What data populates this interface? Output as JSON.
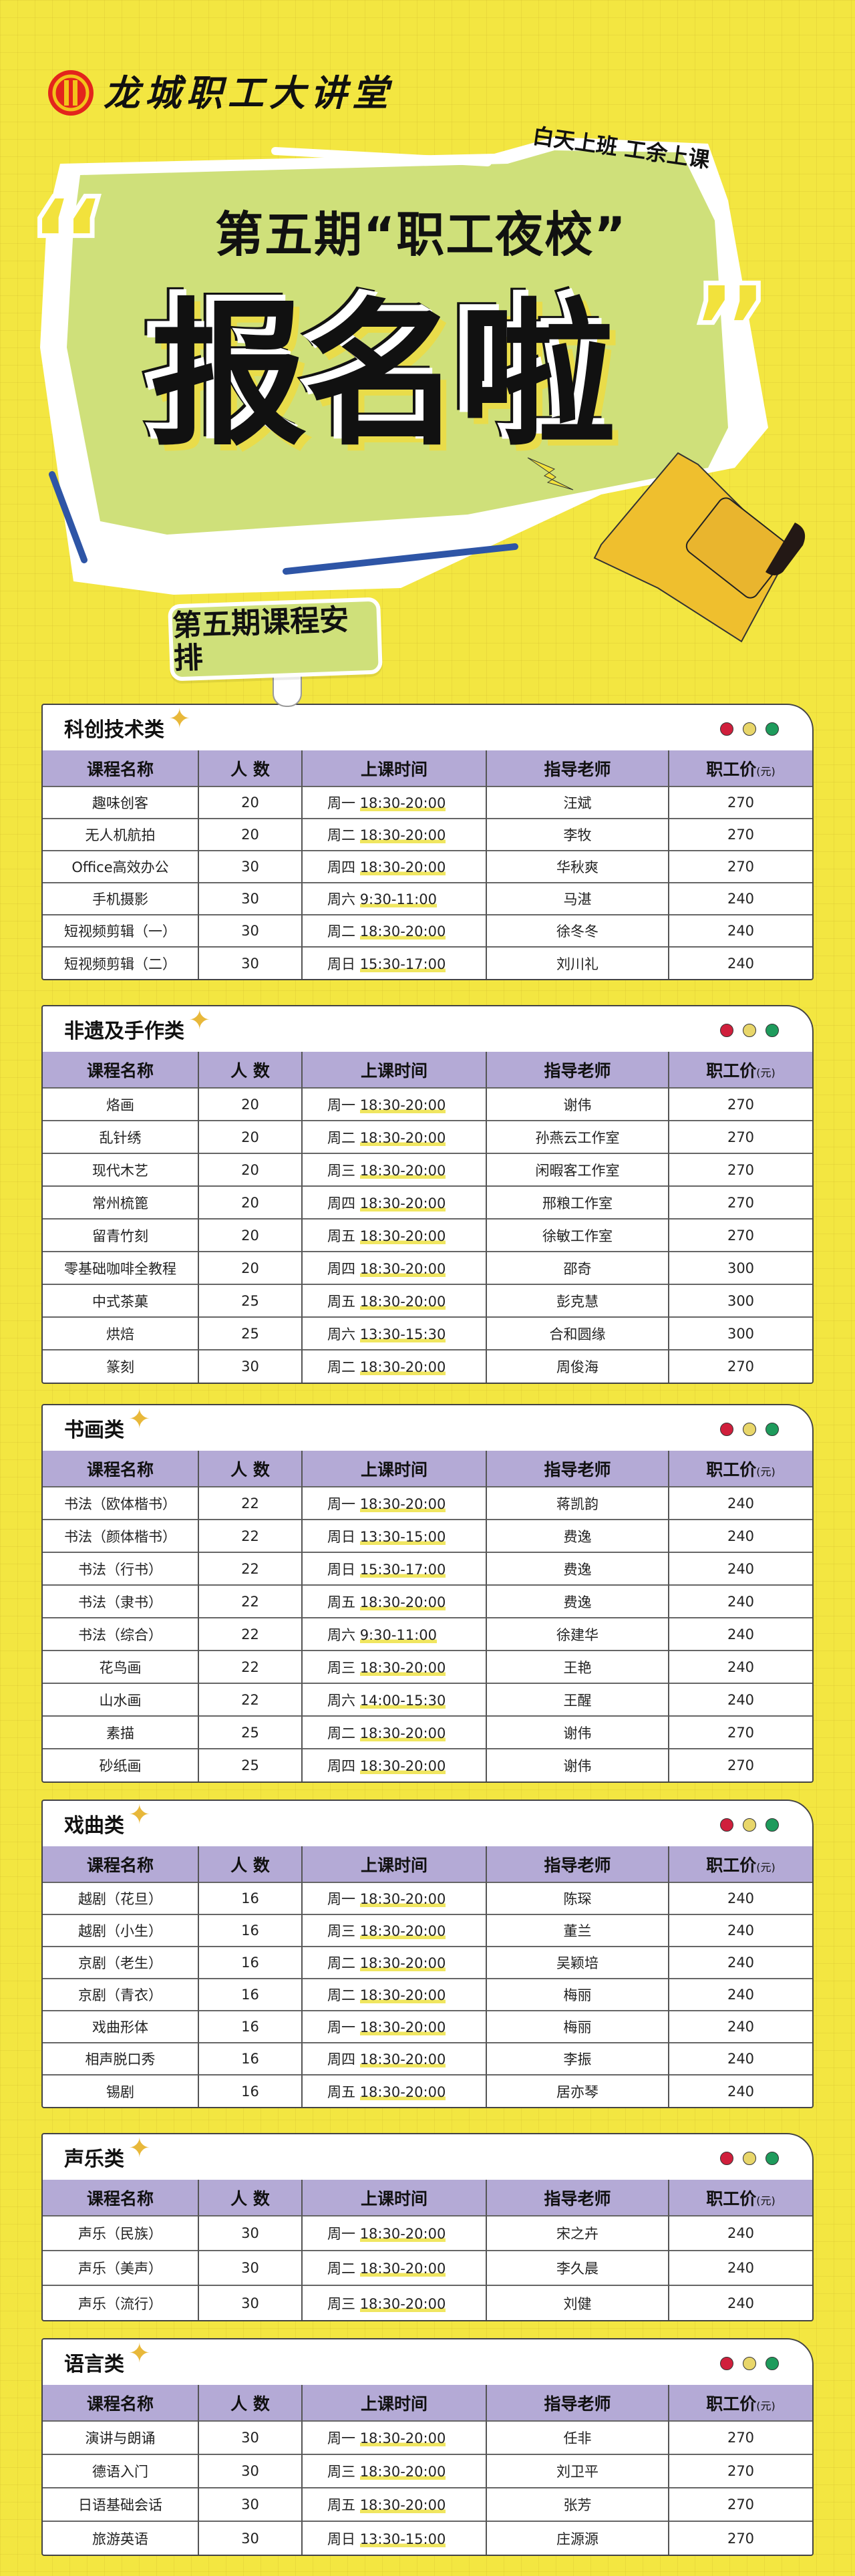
{
  "header": {
    "logo_text": "龙城职工大讲堂",
    "slogan": "白天上班  工余上课",
    "subtitle": "第五期“职工夜校”",
    "headline": "报名啦",
    "quote_open": "“",
    "quote_close": "”",
    "sign_label": "第五期课程安排"
  },
  "colors": {
    "background": "#f3e641",
    "accent_green": "#cfe07a",
    "table_header": "#b4aad6",
    "dot_red": "#d01f3c",
    "dot_yellow": "#e8d66a",
    "dot_green": "#1e9b5c"
  },
  "table_headers": {
    "name": "课程名称",
    "count": "人  数",
    "time": "上课时间",
    "teacher": "指导老师",
    "price": "职工价",
    "price_unit": "(元)"
  },
  "categories": [
    {
      "title": "科创技术类",
      "rows": [
        [
          "趣味创客",
          "20",
          "周一",
          "18:30-20:00",
          "汪斌",
          "270"
        ],
        [
          "无人机航拍",
          "20",
          "周二",
          "18:30-20:00",
          "李牧",
          "270"
        ],
        [
          "Office高效办公",
          "30",
          "周四",
          "18:30-20:00",
          "华秋爽",
          "270"
        ],
        [
          "手机摄影",
          "30",
          "周六",
          "9:30-11:00",
          "马湛",
          "240"
        ],
        [
          "短视频剪辑（一）",
          "30",
          "周二",
          "18:30-20:00",
          "徐冬冬",
          "240"
        ],
        [
          "短视频剪辑（二）",
          "30",
          "周日",
          "15:30-17:00",
          "刘川礼",
          "240"
        ]
      ]
    },
    {
      "title": "非遗及手作类",
      "rows": [
        [
          "烙画",
          "20",
          "周一",
          "18:30-20:00",
          "谢伟",
          "270"
        ],
        [
          "乱针绣",
          "20",
          "周二",
          "18:30-20:00",
          "孙燕云工作室",
          "270"
        ],
        [
          "现代木艺",
          "20",
          "周三",
          "18:30-20:00",
          "闲暇客工作室",
          "270"
        ],
        [
          "常州梳篦",
          "20",
          "周四",
          "18:30-20:00",
          "邢粮工作室",
          "270"
        ],
        [
          "留青竹刻",
          "20",
          "周五",
          "18:30-20:00",
          "徐敏工作室",
          "270"
        ],
        [
          "零基础咖啡全教程",
          "20",
          "周四",
          "18:30-20:00",
          "邵奇",
          "300"
        ],
        [
          "中式茶菓",
          "25",
          "周五",
          "18:30-20:00",
          "彭克慧",
          "300"
        ],
        [
          "烘焙",
          "25",
          "周六",
          "13:30-15:30",
          "合和圆缘",
          "300"
        ],
        [
          "篆刻",
          "30",
          "周二",
          "18:30-20:00",
          "周俊海",
          "270"
        ]
      ]
    },
    {
      "title": "书画类",
      "rows": [
        [
          "书法（欧体楷书）",
          "22",
          "周一",
          "18:30-20:00",
          "蒋凯韵",
          "240"
        ],
        [
          "书法（颜体楷书）",
          "22",
          "周日",
          "13:30-15:00",
          "费逸",
          "240"
        ],
        [
          "书法（行书）",
          "22",
          "周日",
          "15:30-17:00",
          "费逸",
          "240"
        ],
        [
          "书法（隶书）",
          "22",
          "周五",
          "18:30-20:00",
          "费逸",
          "240"
        ],
        [
          "书法（综合）",
          "22",
          "周六",
          "9:30-11:00",
          "徐建华",
          "240"
        ],
        [
          "花鸟画",
          "22",
          "周三",
          "18:30-20:00",
          "王艳",
          "240"
        ],
        [
          "山水画",
          "22",
          "周六",
          "14:00-15:30",
          "王醒",
          "240"
        ],
        [
          "素描",
          "25",
          "周二",
          "18:30-20:00",
          "谢伟",
          "270"
        ],
        [
          "砂纸画",
          "25",
          "周四",
          "18:30-20:00",
          "谢伟",
          "270"
        ]
      ]
    },
    {
      "title": "戏曲类",
      "rows": [
        [
          "越剧（花旦）",
          "16",
          "周一",
          "18:30-20:00",
          "陈琛",
          "240"
        ],
        [
          "越剧（小生）",
          "16",
          "周三",
          "18:30-20:00",
          "董兰",
          "240"
        ],
        [
          "京剧（老生）",
          "16",
          "周二",
          "18:30-20:00",
          "吴颖培",
          "240"
        ],
        [
          "京剧（青衣）",
          "16",
          "周二",
          "18:30-20:00",
          "梅丽",
          "240"
        ],
        [
          "戏曲形体",
          "16",
          "周一",
          "18:30-20:00",
          "梅丽",
          "240"
        ],
        [
          "相声脱口秀",
          "16",
          "周四",
          "18:30-20:00",
          "李振",
          "240"
        ],
        [
          "锡剧",
          "16",
          "周五",
          "18:30-20:00",
          "居亦琴",
          "240"
        ]
      ]
    },
    {
      "title": "声乐类",
      "rows": [
        [
          "声乐（民族）",
          "30",
          "周一",
          "18:30-20:00",
          "宋之卉",
          "240"
        ],
        [
          "声乐（美声）",
          "30",
          "周二",
          "18:30-20:00",
          "李久晨",
          "240"
        ],
        [
          "声乐（流行）",
          "30",
          "周三",
          "18:30-20:00",
          "刘健",
          "240"
        ]
      ]
    },
    {
      "title": "语言类",
      "rows": [
        [
          "演讲与朗诵",
          "30",
          "周一",
          "18:30-20:00",
          "任非",
          "270"
        ],
        [
          "德语入门",
          "30",
          "周三",
          "18:30-20:00",
          "刘卫平",
          "270"
        ],
        [
          "日语基础会话",
          "30",
          "周五",
          "18:30-20:00",
          "张芳",
          "270"
        ],
        [
          "旅游英语",
          "30",
          "周日",
          "13:30-15:00",
          "庄源源",
          "270"
        ]
      ]
    }
  ]
}
